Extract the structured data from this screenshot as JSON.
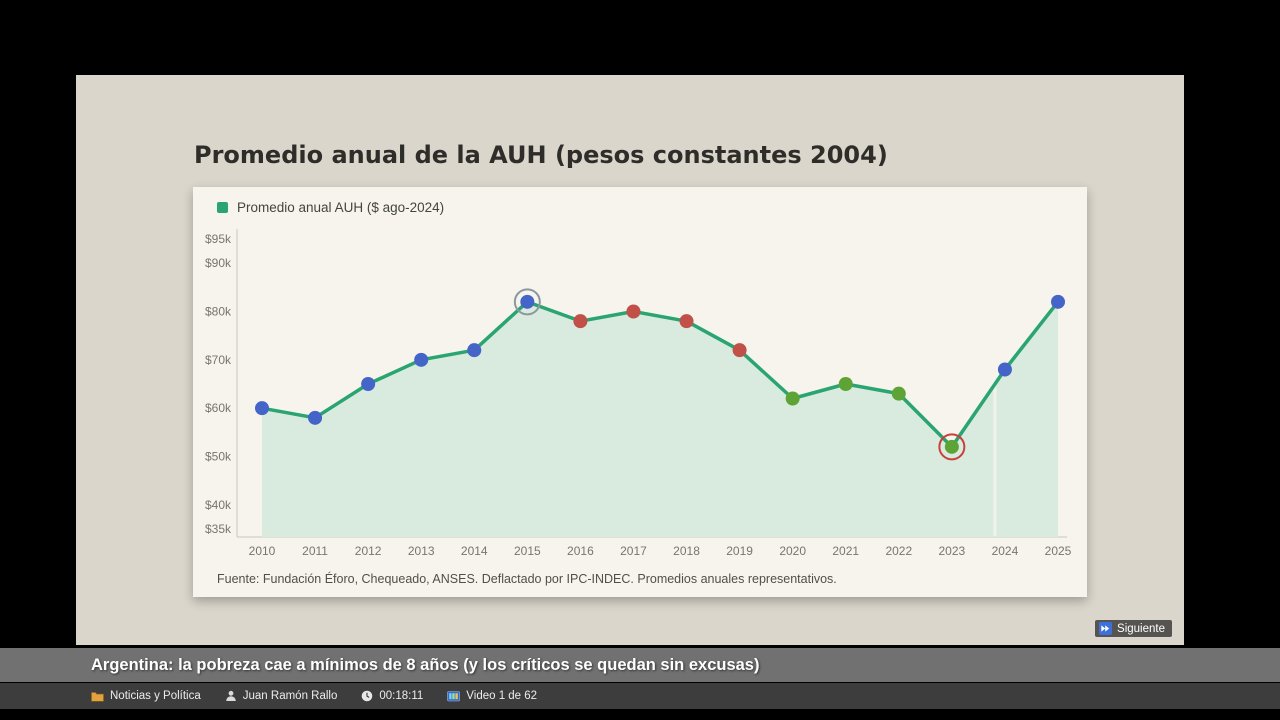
{
  "slide": {
    "title": "Promedio anual de la AUH (pesos constantes 2004)",
    "legend": "Promedio anual AUH ($ ago-2024)",
    "source": "Fuente: Fundación Éforo, Chequeado, ANSES. Deflactado por IPC-INDEC. Promedios anuales representativos."
  },
  "chart_data": {
    "type": "line",
    "title": "Promedio anual de la AUH (pesos constantes 2004)",
    "legend": [
      "Promedio anual AUH ($ ago-2024)"
    ],
    "x": [
      2010,
      2011,
      2012,
      2013,
      2014,
      2015,
      2016,
      2017,
      2018,
      2019,
      2020,
      2021,
      2022,
      2023,
      2024,
      2025
    ],
    "values": [
      60,
      58,
      65,
      70,
      72,
      82,
      78,
      80,
      78,
      72,
      62,
      65,
      63,
      52,
      68,
      82
    ],
    "y_unit": "thousands of pesos (constantes 2004, $ ago-2024)",
    "point_colors": [
      "blue",
      "blue",
      "blue",
      "blue",
      "blue",
      "blue",
      "red",
      "red",
      "red",
      "red",
      "green",
      "green",
      "green",
      "green",
      "blue",
      "blue"
    ],
    "y_ticks": [
      95,
      90,
      80,
      70,
      60,
      50,
      40,
      35
    ],
    "y_tick_labels": [
      "$95k",
      "$90k",
      "$80k",
      "$70k",
      "$60k",
      "$50k",
      "$40k",
      "$35k"
    ],
    "ylim": [
      35,
      95
    ],
    "xlabel": "",
    "ylabel": "",
    "grid": false,
    "legend_position": "top-left",
    "annotations": [
      {
        "x": 2015,
        "type": "circle-highlight",
        "color": "#8e97a0"
      },
      {
        "x": 2023,
        "type": "circle-highlight",
        "color": "#c9403a"
      }
    ],
    "colors": {
      "line": "#2aa470",
      "area": "#d9ebdf",
      "blue": "#4464c8",
      "red": "#c05048",
      "green": "#5ea336"
    }
  },
  "player": {
    "accent": "#3e70dc",
    "next_label": "Siguiente",
    "video_title": "Argentina: la pobreza cae a mínimos de 8 años (y los críticos se quedan sin excusas)",
    "info": {
      "category": "Noticias y Política",
      "author": "Juan Ramón Rallo",
      "duration": "00:18:11",
      "position": "Video 1 de 62"
    },
    "icons": {
      "next": "skip-next-icon",
      "category": "folder-icon",
      "author": "person-icon",
      "duration": "clock-icon",
      "position": "video-icon"
    }
  }
}
